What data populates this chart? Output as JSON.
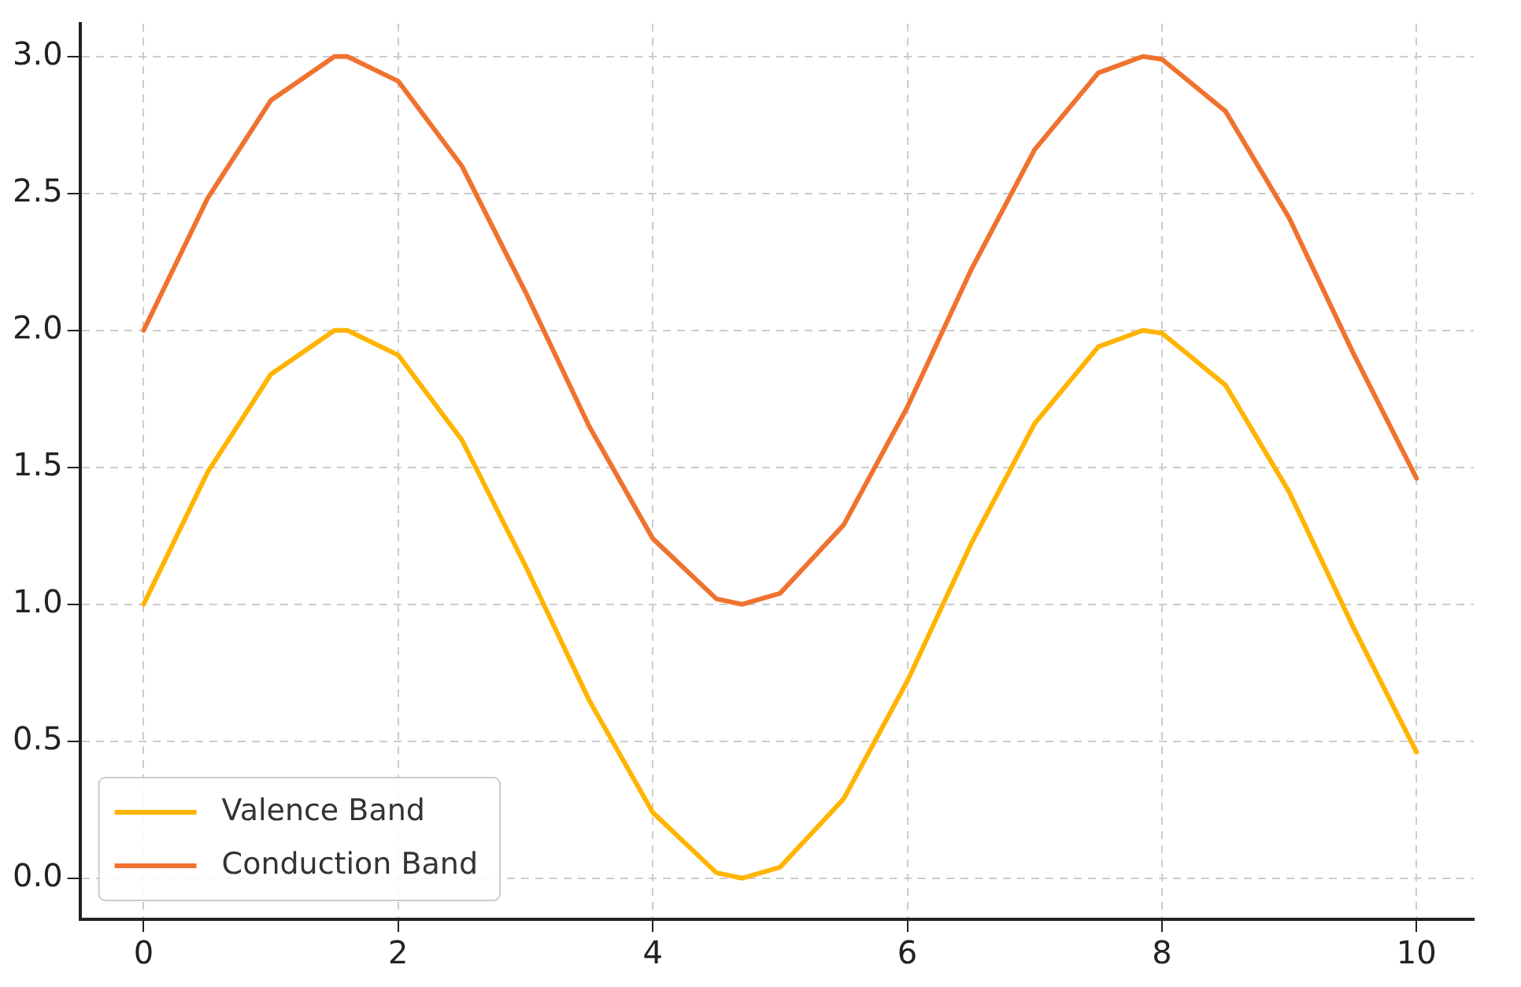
{
  "chart_data": {
    "type": "line",
    "x": [
      0,
      0.5,
      1,
      1.5,
      1.6,
      2,
      2.5,
      3,
      3.5,
      4,
      4.5,
      4.7,
      5,
      5.5,
      6,
      6.5,
      7,
      7.5,
      7.85,
      8,
      8.5,
      9,
      9.5,
      10
    ],
    "series": [
      {
        "name": "Valence Band",
        "color": "#ffb400",
        "values": [
          1.0,
          1.48,
          1.84,
          2.0,
          2.0,
          1.91,
          1.6,
          1.14,
          0.65,
          0.24,
          0.02,
          0.0,
          0.04,
          0.29,
          0.72,
          1.22,
          1.66,
          1.94,
          2.0,
          1.99,
          1.8,
          1.41,
          0.92,
          0.46
        ]
      },
      {
        "name": "Conduction Band",
        "color": "#f0722f",
        "values": [
          2.0,
          2.48,
          2.84,
          3.0,
          3.0,
          2.91,
          2.6,
          2.14,
          1.65,
          1.24,
          1.02,
          1.0,
          1.04,
          1.29,
          1.72,
          2.22,
          2.66,
          2.94,
          3.0,
          2.99,
          2.8,
          2.41,
          1.92,
          1.46
        ]
      }
    ],
    "xlim": [
      -0.5,
      10.45
    ],
    "ylim": [
      -0.15,
      3.12
    ],
    "xticks": [
      0,
      2,
      4,
      6,
      8,
      10
    ],
    "yticks": [
      {
        "value": 0,
        "label": "0.0"
      },
      {
        "value": 0.5,
        "label": "0.5"
      },
      {
        "value": 1,
        "label": "1.0"
      },
      {
        "value": 1.5,
        "label": "1.5"
      },
      {
        "value": 2,
        "label": "2.0"
      },
      {
        "value": 2.5,
        "label": "2.5"
      },
      {
        "value": 3,
        "label": "3.0"
      }
    ],
    "grid": true,
    "legend": "bottom left",
    "marker": "none",
    "line_style": "solid"
  }
}
